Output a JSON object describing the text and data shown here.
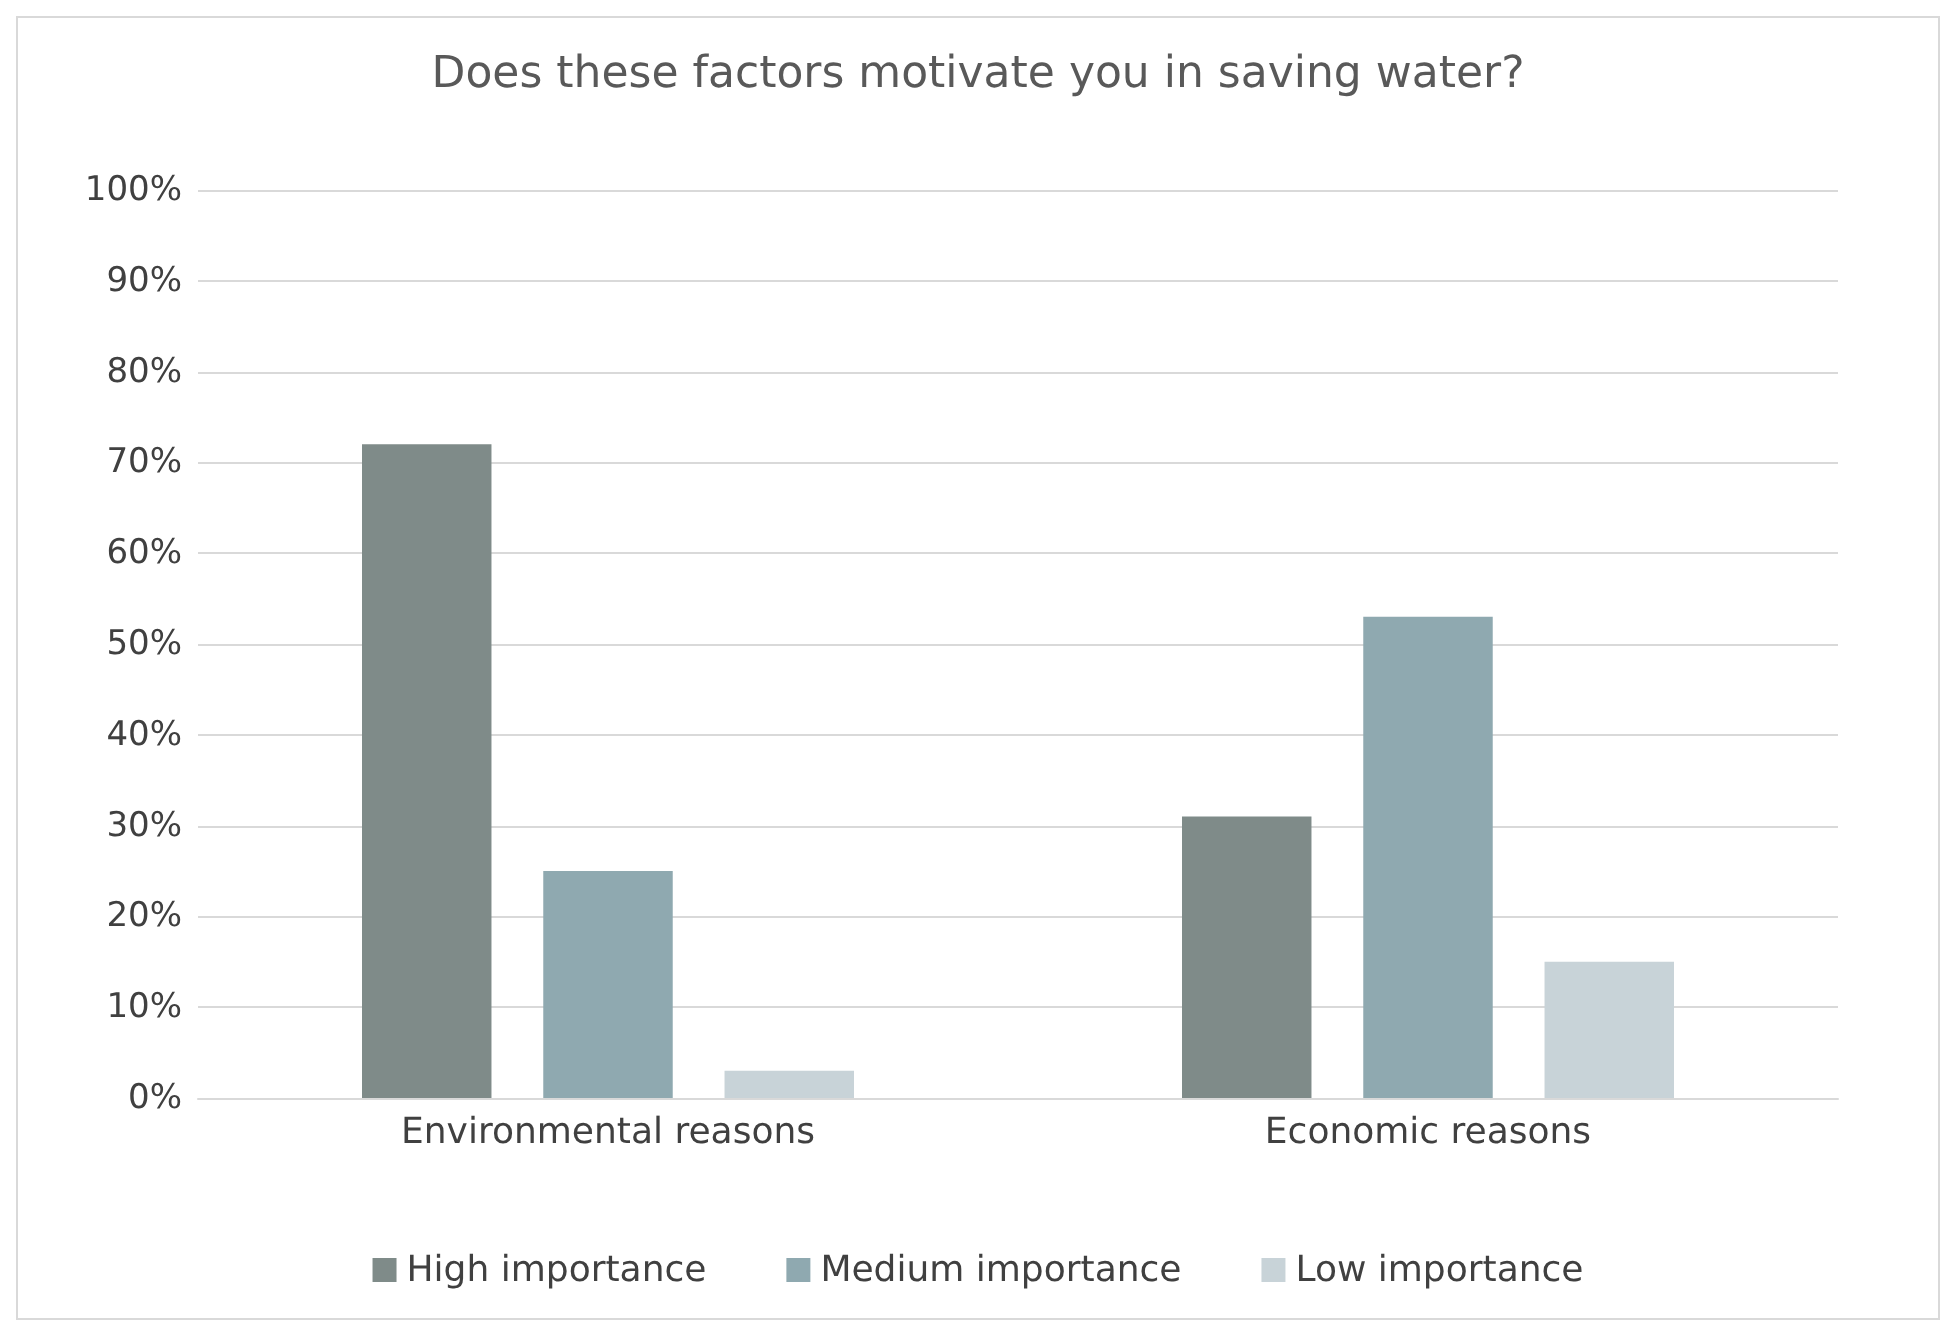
{
  "chart_data": {
    "type": "bar",
    "title": "Does these factors motivate you in saving water?",
    "categories": [
      "Environmental reasons",
      "Economic reasons"
    ],
    "series": [
      {
        "name": "High importance",
        "color": "#7f8b89",
        "values": [
          72,
          31
        ]
      },
      {
        "name": "Medium importance",
        "color": "#8fa9b0",
        "values": [
          25,
          53
        ]
      },
      {
        "name": "Low importance",
        "color": "#c8d3d8",
        "values": [
          3,
          15
        ]
      }
    ],
    "ylim": [
      0,
      100
    ],
    "yticks": [
      {
        "value": 0,
        "label": "0%"
      },
      {
        "value": 10,
        "label": "10%"
      },
      {
        "value": 20,
        "label": "20%"
      },
      {
        "value": 30,
        "label": "30%"
      },
      {
        "value": 40,
        "label": "40%"
      },
      {
        "value": 50,
        "label": "50%"
      },
      {
        "value": 60,
        "label": "60%"
      },
      {
        "value": 70,
        "label": "70%"
      },
      {
        "value": 80,
        "label": "80%"
      },
      {
        "value": 90,
        "label": "90%"
      },
      {
        "value": 100,
        "label": "100%"
      }
    ],
    "grid": "y",
    "legend": "bottom"
  }
}
